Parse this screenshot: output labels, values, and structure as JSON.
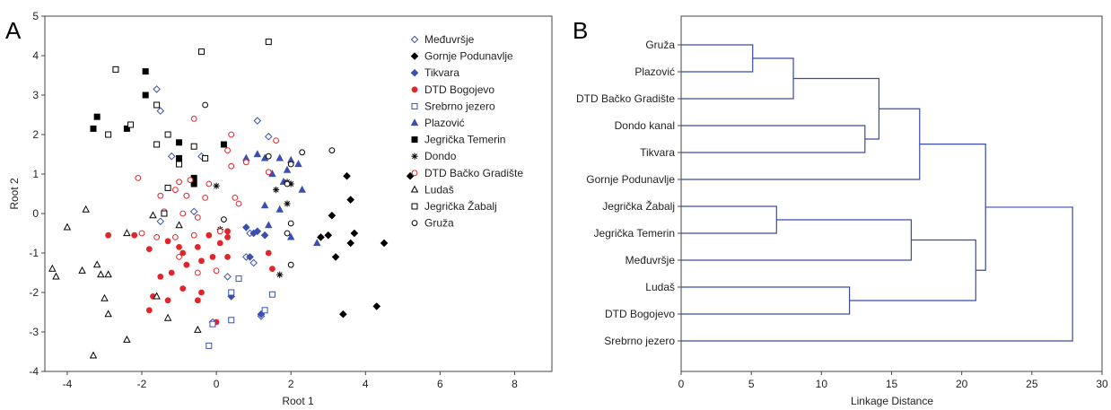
{
  "panels": {
    "a": "A",
    "b": "B"
  },
  "colors": {
    "blue": "#3a4fb0",
    "red": "#e0262a",
    "black": "#000000",
    "gray": "#555555",
    "dendro": "#3a4aa8"
  },
  "chart_data": [
    {
      "type": "scatter",
      "xlabel": "Root 1",
      "ylabel": "Root 2",
      "xlim": [
        -4.6,
        9
      ],
      "ylim": [
        -4,
        5
      ],
      "xticks": [
        "-4",
        "-2",
        "0",
        "2",
        "4",
        "6",
        "8"
      ],
      "yticks": [
        "5",
        "4",
        "3",
        "2",
        "1",
        "0",
        "-1",
        "-2",
        "-3",
        "-4"
      ],
      "xtick_values": [
        -4,
        -2,
        0,
        2,
        4,
        6,
        8
      ],
      "ytick_values": [
        5,
        4,
        3,
        2,
        1,
        0,
        -1,
        -2,
        -3,
        -4
      ],
      "legend_position": "top-right",
      "series": [
        {
          "name": "Međuvršje",
          "marker": "diamond-open",
          "color": "#3a4fb0",
          "points": [
            [
              -1.6,
              3.15
            ],
            [
              -1.5,
              2.6
            ],
            [
              1.1,
              2.35
            ],
            [
              1.4,
              1.95
            ],
            [
              -1.2,
              1.45
            ],
            [
              -0.4,
              1.45
            ],
            [
              -1.5,
              -0.2
            ],
            [
              -0.6,
              0.05
            ],
            [
              0.9,
              -0.5
            ],
            [
              0.3,
              -1.6
            ],
            [
              1.2,
              -2.6
            ],
            [
              -0.1,
              -2.75
            ],
            [
              1.0,
              -1.25
            ],
            [
              0.8,
              -1.1
            ]
          ]
        },
        {
          "name": "Gornje Podunavlje",
          "marker": "diamond-filled",
          "color": "#000000",
          "points": [
            [
              3.5,
              0.95
            ],
            [
              3.6,
              0.35
            ],
            [
              5.2,
              0.95
            ],
            [
              3.1,
              -0.05
            ],
            [
              2.8,
              -0.6
            ],
            [
              3.0,
              -0.55
            ],
            [
              3.7,
              -0.5
            ],
            [
              3.6,
              -0.75
            ],
            [
              4.5,
              -0.75
            ],
            [
              3.2,
              -1.1
            ],
            [
              3.4,
              -2.55
            ],
            [
              4.3,
              -2.35
            ]
          ]
        },
        {
          "name": "Tikvara",
          "marker": "diamond-filled",
          "color": "#3a4fb0",
          "points": [
            [
              0.8,
              -0.35
            ],
            [
              1.0,
              -0.5
            ],
            [
              1.1,
              -0.45
            ],
            [
              1.3,
              -0.55
            ],
            [
              1.2,
              -2.55
            ],
            [
              0.4,
              -2.1
            ],
            [
              0.9,
              -1.1
            ]
          ]
        },
        {
          "name": "DTD Bogojevo",
          "marker": "circle-filled",
          "color": "#e0262a",
          "points": [
            [
              -2.9,
              -0.55
            ],
            [
              -2.2,
              -0.55
            ],
            [
              -1.8,
              -0.9
            ],
            [
              -1.3,
              -0.7
            ],
            [
              -1.0,
              -0.85
            ],
            [
              -0.9,
              -1.0
            ],
            [
              -0.5,
              -0.85
            ],
            [
              -0.2,
              -0.55
            ],
            [
              0.3,
              -0.45
            ],
            [
              0.3,
              -0.6
            ],
            [
              0.1,
              -0.75
            ],
            [
              -1.5,
              -1.6
            ],
            [
              -1.2,
              -1.5
            ],
            [
              -0.8,
              -1.3
            ],
            [
              -0.4,
              -1.2
            ],
            [
              -0.1,
              -1.1
            ],
            [
              0.3,
              -1.1
            ],
            [
              -1.7,
              -2.1
            ],
            [
              -1.3,
              -2.2
            ],
            [
              -0.9,
              -1.9
            ],
            [
              -0.4,
              -2.0
            ],
            [
              -1.8,
              -2.45
            ],
            [
              -0.5,
              -2.2
            ],
            [
              0.0,
              -2.75
            ],
            [
              1.5,
              -1.4
            ],
            [
              1.4,
              -1.0
            ]
          ]
        },
        {
          "name": "Srebrno jezero",
          "marker": "square-open",
          "color": "#3a4fb0",
          "points": [
            [
              0.6,
              -1.65
            ],
            [
              0.4,
              -2.0
            ],
            [
              1.5,
              -2.05
            ],
            [
              1.3,
              -2.45
            ],
            [
              0.4,
              -2.7
            ],
            [
              -0.1,
              -2.8
            ],
            [
              -0.2,
              -3.35
            ]
          ]
        },
        {
          "name": "Plazović",
          "marker": "triangle-filled",
          "color": "#3a4fb0",
          "points": [
            [
              0.8,
              1.4
            ],
            [
              1.1,
              1.5
            ],
            [
              1.3,
              1.4
            ],
            [
              1.7,
              1.4
            ],
            [
              2.0,
              1.35
            ],
            [
              2.2,
              1.25
            ],
            [
              1.5,
              1.0
            ],
            [
              1.9,
              1.1
            ],
            [
              2.3,
              0.6
            ],
            [
              1.3,
              0.2
            ],
            [
              1.7,
              0.1
            ],
            [
              1.8,
              0.8
            ],
            [
              1.4,
              -0.3
            ],
            [
              2.0,
              -0.6
            ],
            [
              2.7,
              -0.75
            ]
          ]
        },
        {
          "name": "Jegrička Temerin",
          "marker": "square-filled",
          "color": "#000000",
          "points": [
            [
              -1.9,
              3.6
            ],
            [
              -1.9,
              3.0
            ],
            [
              -3.2,
              2.45
            ],
            [
              -3.3,
              2.15
            ],
            [
              -2.4,
              2.15
            ],
            [
              -1.0,
              1.8
            ],
            [
              0.2,
              1.75
            ],
            [
              -1.0,
              1.4
            ],
            [
              -0.6,
              0.9
            ],
            [
              -0.6,
              0.75
            ]
          ]
        },
        {
          "name": "Dondo",
          "marker": "asterisk",
          "color": "#000000",
          "points": [
            [
              0.0,
              0.7
            ],
            [
              1.6,
              0.6
            ],
            [
              1.9,
              0.8
            ],
            [
              2.0,
              0.75
            ],
            [
              1.9,
              0.25
            ],
            [
              1.7,
              -1.55
            ],
            [
              0.1,
              -0.4
            ]
          ]
        },
        {
          "name": "DTD Bačko Gradište",
          "marker": "circle-open",
          "color": "#e0262a",
          "points": [
            [
              -0.6,
              2.4
            ],
            [
              0.4,
              2.0
            ],
            [
              1.6,
              1.85
            ],
            [
              0.3,
              1.6
            ],
            [
              0.8,
              1.3
            ],
            [
              0.4,
              1.2
            ],
            [
              1.4,
              1.05
            ],
            [
              -2.1,
              0.9
            ],
            [
              -0.7,
              0.85
            ],
            [
              -1.0,
              0.8
            ],
            [
              -0.2,
              0.75
            ],
            [
              -1.5,
              0.45
            ],
            [
              -1.1,
              0.6
            ],
            [
              -0.8,
              0.45
            ],
            [
              -0.3,
              0.4
            ],
            [
              0.5,
              0.4
            ],
            [
              0.6,
              0.25
            ],
            [
              -1.4,
              0.05
            ],
            [
              -0.9,
              0.0
            ],
            [
              -0.5,
              -0.1
            ],
            [
              -2.0,
              -0.5
            ],
            [
              -1.6,
              -0.6
            ],
            [
              -1.1,
              -0.6
            ],
            [
              -0.6,
              -0.55
            ],
            [
              0.1,
              -0.45
            ],
            [
              -1.0,
              -1.1
            ],
            [
              -0.5,
              -1.5
            ],
            [
              0.0,
              -1.45
            ]
          ]
        },
        {
          "name": "Ludaš",
          "marker": "triangle-open",
          "color": "#000000",
          "points": [
            [
              -3.5,
              0.1
            ],
            [
              -4.0,
              -0.35
            ],
            [
              -2.4,
              -0.5
            ],
            [
              -3.2,
              -1.3
            ],
            [
              -3.6,
              -1.45
            ],
            [
              -4.3,
              -1.6
            ],
            [
              -3.1,
              -1.55
            ],
            [
              -2.9,
              -1.55
            ],
            [
              -4.4,
              -1.4
            ],
            [
              -3.0,
              -2.15
            ],
            [
              -2.9,
              -2.55
            ],
            [
              -2.4,
              -3.2
            ],
            [
              -3.3,
              -3.6
            ],
            [
              -1.6,
              -2.1
            ],
            [
              -1.3,
              -2.65
            ],
            [
              -0.5,
              -2.95
            ],
            [
              -1.7,
              -0.05
            ],
            [
              -1.0,
              -0.3
            ]
          ]
        },
        {
          "name": "Jegrička Žabalj",
          "marker": "square-open",
          "color": "#000000",
          "points": [
            [
              -2.7,
              3.65
            ],
            [
              -0.4,
              4.1
            ],
            [
              1.4,
              4.35
            ],
            [
              -1.6,
              2.75
            ],
            [
              -2.9,
              2.0
            ],
            [
              -1.6,
              1.75
            ],
            [
              -2.3,
              2.25
            ],
            [
              -1.3,
              2.0
            ],
            [
              -1.0,
              1.25
            ],
            [
              -0.6,
              1.7
            ],
            [
              -1.3,
              0.65
            ],
            [
              -1.4,
              0.0
            ],
            [
              -0.3,
              1.4
            ]
          ]
        },
        {
          "name": "Gruža",
          "marker": "circle-open",
          "color": "#000000",
          "points": [
            [
              -0.3,
              2.75
            ],
            [
              2.3,
              1.55
            ],
            [
              3.1,
              1.6
            ],
            [
              1.4,
              1.45
            ],
            [
              2.0,
              1.25
            ],
            [
              1.9,
              0.75
            ],
            [
              0.2,
              -0.15
            ],
            [
              2.0,
              -0.25
            ],
            [
              1.9,
              -0.5
            ],
            [
              2.0,
              -1.3
            ]
          ]
        }
      ]
    },
    {
      "type": "dendrogram",
      "xlabel": "Linkage Distance",
      "xlim": [
        0,
        30
      ],
      "xticks": [
        "0",
        "5",
        "10",
        "15",
        "20",
        "25",
        "30"
      ],
      "xtick_values": [
        0,
        5,
        10,
        15,
        20,
        25,
        30
      ],
      "leaves": [
        "Gruža",
        "Plazović",
        "DTD Bačko Gradište",
        "Dondo kanal",
        "Tikvara",
        "Gornje Podunavlje",
        "Jegrička Žabalj",
        "Jegrička Temerin",
        "Međuvršje",
        "Ludaš",
        "DTD Bogojevo",
        "Srebrno jezero"
      ],
      "merges": [
        {
          "a": "leaf:0",
          "b": "leaf:1",
          "distance": 5.1
        },
        {
          "a": "node:0",
          "b": "leaf:2",
          "distance": 8.0
        },
        {
          "a": "leaf:3",
          "b": "leaf:4",
          "distance": 13.1
        },
        {
          "a": "node:1",
          "b": "node:2",
          "distance": 14.1
        },
        {
          "a": "node:3",
          "b": "leaf:5",
          "distance": 17.0
        },
        {
          "a": "leaf:6",
          "b": "leaf:7",
          "distance": 6.8
        },
        {
          "a": "node:5",
          "b": "leaf:8",
          "distance": 16.4
        },
        {
          "a": "leaf:9",
          "b": "leaf:10",
          "distance": 12.0
        },
        {
          "a": "node:6",
          "b": "node:7",
          "distance": 21.0
        },
        {
          "a": "node:4",
          "b": "node:8",
          "distance": 21.7
        },
        {
          "a": "node:9",
          "b": "leaf:11",
          "distance": 27.9
        }
      ]
    }
  ]
}
